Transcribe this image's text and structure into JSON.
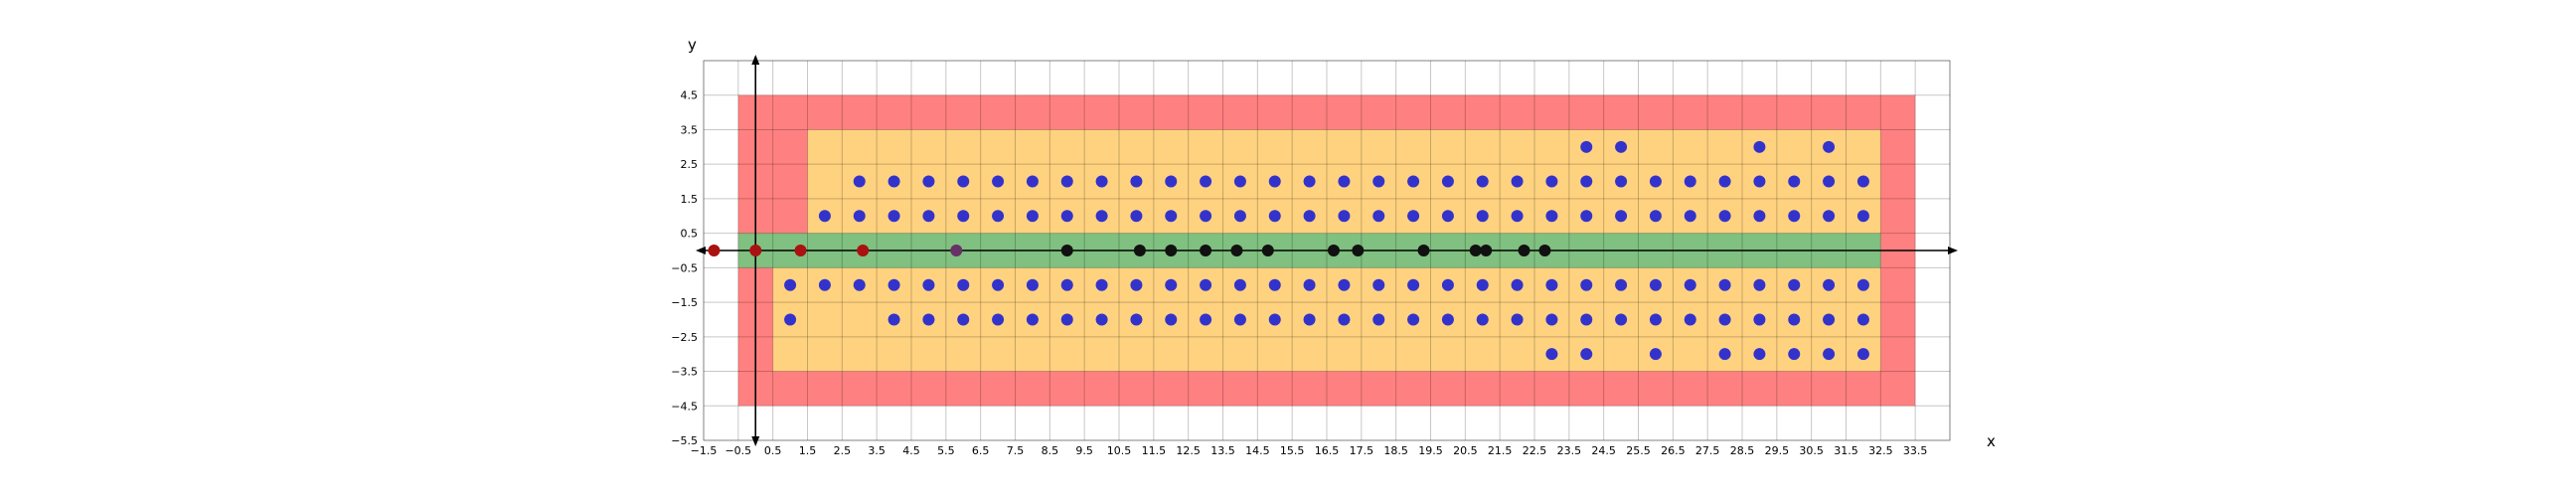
{
  "chart_data": {
    "type": "scatter",
    "title": "",
    "xlabel": "x",
    "ylabel": "y",
    "xlim": [
      -1.5,
      34.5
    ],
    "ylim": [
      -5.5,
      5.5
    ],
    "grid": true,
    "x_tick_labels": [
      "−1.5",
      "−0.5",
      "0.5",
      "1.5",
      "2.5",
      "3.5",
      "4.5",
      "5.5",
      "6.5",
      "7.5",
      "8.5",
      "9.5",
      "10.5",
      "11.5",
      "12.5",
      "13.5",
      "14.5",
      "15.5",
      "16.5",
      "17.5",
      "18.5",
      "19.5",
      "20.5",
      "21.5",
      "22.5",
      "23.5",
      "24.5",
      "25.5",
      "26.5",
      "27.5",
      "28.5",
      "29.5",
      "30.5",
      "31.5",
      "32.5",
      "33.5"
    ],
    "y_tick_labels": [
      "4.5",
      "3.5",
      "2.5",
      "1.5",
      "0.5",
      "−0.5",
      "−1.5",
      "−2.5",
      "−3.5",
      "−4.5",
      "−5.5"
    ],
    "regions": [
      {
        "kind": "outer",
        "color": "#ff8080",
        "x": [
          -0.5,
          33.5
        ],
        "y": [
          -4.5,
          4.5
        ]
      },
      {
        "kind": "middle",
        "color": "#ffd280",
        "x_top": [
          1.5,
          32.5
        ],
        "y_top": [
          0,
          3.5
        ],
        "x_bottom": [
          0.5,
          32.5
        ],
        "y_bottom": [
          -3.5,
          0
        ]
      },
      {
        "kind": "inner",
        "color": "#80c080",
        "x": [
          -0.5,
          32.5
        ],
        "y": [
          -0.5,
          0.5
        ]
      }
    ],
    "series": [
      {
        "color": "#3333cc",
        "points": [
          [
            24,
            3
          ],
          [
            25,
            3
          ],
          [
            29,
            3
          ],
          [
            31,
            3
          ],
          [
            3,
            2
          ],
          [
            4,
            2
          ],
          [
            5,
            2
          ],
          [
            6,
            2
          ],
          [
            7,
            2
          ],
          [
            8,
            2
          ],
          [
            9,
            2
          ],
          [
            10,
            2
          ],
          [
            11,
            2
          ],
          [
            12,
            2
          ],
          [
            13,
            2
          ],
          [
            14,
            2
          ],
          [
            15,
            2
          ],
          [
            16,
            2
          ],
          [
            17,
            2
          ],
          [
            18,
            2
          ],
          [
            19,
            2
          ],
          [
            20,
            2
          ],
          [
            21,
            2
          ],
          [
            22,
            2
          ],
          [
            23,
            2
          ],
          [
            24,
            2
          ],
          [
            25,
            2
          ],
          [
            26,
            2
          ],
          [
            27,
            2
          ],
          [
            28,
            2
          ],
          [
            29,
            2
          ],
          [
            30,
            2
          ],
          [
            31,
            2
          ],
          [
            32,
            2
          ],
          [
            2,
            1
          ],
          [
            3,
            1
          ],
          [
            4,
            1
          ],
          [
            5,
            1
          ],
          [
            6,
            1
          ],
          [
            7,
            1
          ],
          [
            8,
            1
          ],
          [
            9,
            1
          ],
          [
            10,
            1
          ],
          [
            11,
            1
          ],
          [
            12,
            1
          ],
          [
            13,
            1
          ],
          [
            14,
            1
          ],
          [
            15,
            1
          ],
          [
            16,
            1
          ],
          [
            17,
            1
          ],
          [
            18,
            1
          ],
          [
            19,
            1
          ],
          [
            20,
            1
          ],
          [
            21,
            1
          ],
          [
            22,
            1
          ],
          [
            23,
            1
          ],
          [
            24,
            1
          ],
          [
            25,
            1
          ],
          [
            26,
            1
          ],
          [
            27,
            1
          ],
          [
            28,
            1
          ],
          [
            29,
            1
          ],
          [
            30,
            1
          ],
          [
            31,
            1
          ],
          [
            32,
            1
          ],
          [
            1,
            -1
          ],
          [
            2,
            -1
          ],
          [
            3,
            -1
          ],
          [
            4,
            -1
          ],
          [
            5,
            -1
          ],
          [
            6,
            -1
          ],
          [
            7,
            -1
          ],
          [
            8,
            -1
          ],
          [
            9,
            -1
          ],
          [
            10,
            -1
          ],
          [
            11,
            -1
          ],
          [
            12,
            -1
          ],
          [
            13,
            -1
          ],
          [
            14,
            -1
          ],
          [
            15,
            -1
          ],
          [
            16,
            -1
          ],
          [
            17,
            -1
          ],
          [
            18,
            -1
          ],
          [
            19,
            -1
          ],
          [
            20,
            -1
          ],
          [
            21,
            -1
          ],
          [
            22,
            -1
          ],
          [
            23,
            -1
          ],
          [
            24,
            -1
          ],
          [
            25,
            -1
          ],
          [
            26,
            -1
          ],
          [
            27,
            -1
          ],
          [
            28,
            -1
          ],
          [
            29,
            -1
          ],
          [
            30,
            -1
          ],
          [
            31,
            -1
          ],
          [
            32,
            -1
          ],
          [
            1,
            -2
          ],
          [
            4,
            -2
          ],
          [
            5,
            -2
          ],
          [
            6,
            -2
          ],
          [
            7,
            -2
          ],
          [
            8,
            -2
          ],
          [
            9,
            -2
          ],
          [
            10,
            -2
          ],
          [
            11,
            -2
          ],
          [
            12,
            -2
          ],
          [
            13,
            -2
          ],
          [
            14,
            -2
          ],
          [
            15,
            -2
          ],
          [
            16,
            -2
          ],
          [
            17,
            -2
          ],
          [
            18,
            -2
          ],
          [
            19,
            -2
          ],
          [
            20,
            -2
          ],
          [
            21,
            -2
          ],
          [
            22,
            -2
          ],
          [
            23,
            -2
          ],
          [
            24,
            -2
          ],
          [
            25,
            -2
          ],
          [
            26,
            -2
          ],
          [
            27,
            -2
          ],
          [
            28,
            -2
          ],
          [
            29,
            -2
          ],
          [
            30,
            -2
          ],
          [
            31,
            -2
          ],
          [
            32,
            -2
          ],
          [
            23,
            -3
          ],
          [
            24,
            -3
          ],
          [
            26,
            -3
          ],
          [
            28,
            -3
          ],
          [
            29,
            -3
          ],
          [
            30,
            -3
          ],
          [
            31,
            -3
          ],
          [
            32,
            -3
          ]
        ]
      },
      {
        "color": "#aa1111",
        "points": [
          [
            -1.2,
            0
          ],
          [
            0,
            0
          ],
          [
            1.3,
            0
          ],
          [
            3.1,
            0
          ]
        ]
      },
      {
        "color": "#663366",
        "points": [
          [
            5.8,
            0
          ]
        ]
      },
      {
        "color": "#111111",
        "points": [
          [
            9,
            0
          ],
          [
            11.1,
            0
          ],
          [
            12,
            0
          ],
          [
            13,
            0
          ],
          [
            13.9,
            0
          ],
          [
            14.8,
            0
          ],
          [
            16.7,
            0
          ],
          [
            17.4,
            0
          ],
          [
            19.3,
            0
          ],
          [
            20.8,
            0
          ],
          [
            21.1,
            0
          ],
          [
            22.2,
            0
          ],
          [
            22.8,
            0
          ]
        ]
      }
    ]
  }
}
